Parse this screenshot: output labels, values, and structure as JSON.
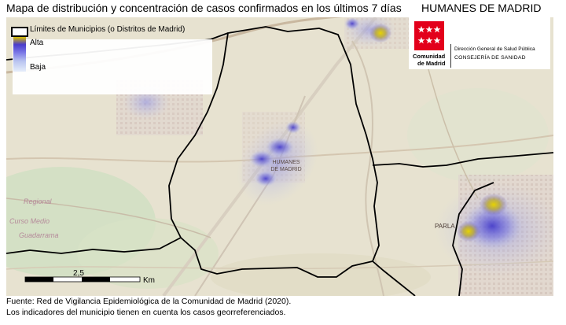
{
  "header": {
    "title": "Mapa de distribución y concentración de casos confirmados en los últimos 7 días",
    "municipality": "HUMANES DE MADRID"
  },
  "legend": {
    "boundary_label": "Límites de Municipios (o Distritos de Madrid)",
    "high_label": "Alta",
    "low_label": "Baja",
    "gradient_colors": [
      "#d8c000",
      "#4a3ccc",
      "#7a78e6",
      "#b9c4f0",
      "#e6eefa"
    ]
  },
  "brand": {
    "name_line1": "Comunidad",
    "name_line2": "de Madrid",
    "department": "Dirección General de Salud Pública",
    "ministry": "CONSEJERÍA DE SANIDAD",
    "logo_color": "#e3001b"
  },
  "map": {
    "labels": {
      "humanes_1": "HUMANES",
      "humanes_2": "DE MADRID",
      "parla": "PARLA",
      "regional": "Regional",
      "curso_medio": "Curso Medio",
      "guadarrama": "Guadarrama"
    },
    "scale_value": "2,5",
    "scale_unit": "Km"
  },
  "footer": {
    "source": "Fuente:  Red de Vigilancia Epidemiológica de la Comunidad de Madrid (2020).",
    "note": "Los indicadores del municipio tienen en cuenta los casos georreferenciados."
  }
}
